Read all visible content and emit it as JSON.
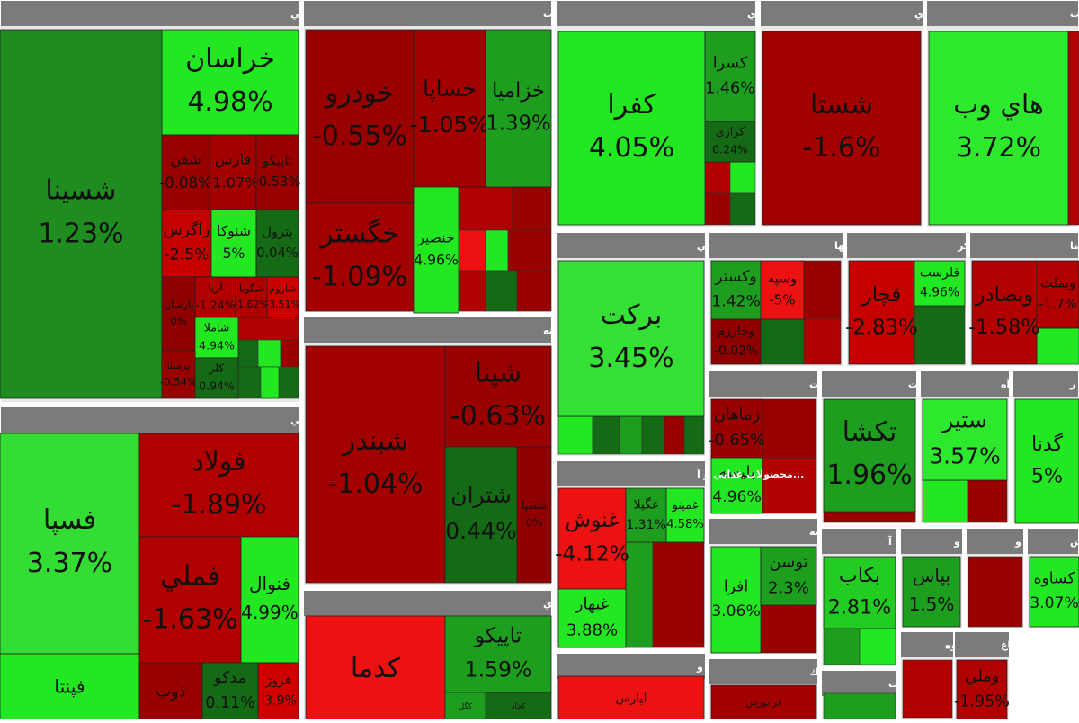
{
  "chart_data": {
    "type": "treemap",
    "groups": [
      {
        "name": "محصولات شيميايي",
        "categories": [
          "شسينا",
          "خراسان",
          "شفن",
          "فارس",
          "تاپيكو",
          "زاگرس",
          "شنوكا",
          "پترول",
          "پارسان",
          "آريا",
          "شگويا",
          "شاروم",
          "شاملا",
          "پرمينا",
          "كلر"
        ],
        "values": [
          1.23,
          4.98,
          -0.08,
          -1.07,
          -0.53,
          -2.5,
          5,
          0.04,
          0,
          -1.24,
          -1.62,
          -3.51,
          4.94,
          -0.54,
          0.94
        ],
        "value_labels": [
          "1.23%",
          "4.98%",
          "-0.08%",
          "-1.07%",
          "-0.53%",
          "-2.5%",
          "5%",
          "0.04%",
          "0%",
          "-1.24%",
          "-1.62%",
          "-3.51%",
          "4.94%",
          "-0.54%",
          "0.94%"
        ],
        "colors": [
          "#1e8c1e",
          "#22e822",
          "#990000",
          "#a30000",
          "#990000",
          "#c40000",
          "#22e822",
          "#156b15",
          "#8f0000",
          "#b00000",
          "#b00000",
          "#cc0000",
          "#22e822",
          "#990000",
          "#156b15"
        ]
      },
      {
        "name": "فلزات اساسي",
        "categories": [
          "فسپا",
          "فولاد",
          "فملي",
          "فنوال",
          "فپنتا",
          "ذوب",
          "مدكو",
          "فروژ"
        ],
        "values": [
          3.37,
          -1.89,
          -1.63,
          4.99,
          null,
          null,
          0.11,
          -3.9
        ],
        "value_labels": [
          "3.37%",
          "-1.89%",
          "-1.63%",
          "4.99%",
          null,
          null,
          "0.11%",
          "-3.9%"
        ],
        "colors": [
          "#33dd33",
          "#b00000",
          "#b00000",
          "#22e822",
          "#22e822",
          "#990000",
          "#156b15",
          "#d00000"
        ]
      },
      {
        "name": "خودرو و ساخت قطعات",
        "categories": [
          "خودرو",
          "خساپا",
          "خزاميا",
          "خگستر",
          "خنصير"
        ],
        "values": [
          -0.55,
          -1.05,
          1.39,
          -1.09,
          4.96
        ],
        "value_labels": [
          "-0.55%",
          "-1.05%",
          "1.39%",
          "-1.09%",
          "4.96%"
        ],
        "colors": [
          "#990000",
          "#a30000",
          "#1e9e1e",
          "#a30000",
          "#22e822"
        ]
      },
      {
        "name": "...فراورده هاي نفتي، كك و سوخت هسته",
        "categories": [
          "شبندر",
          "شپنا",
          "شتران",
          "شسپا"
        ],
        "values": [
          -1.04,
          -0.63,
          0.44,
          0
        ],
        "value_labels": [
          "-1.04%",
          "-0.63%",
          "0.44%",
          "0%"
        ],
        "colors": [
          "#a30000",
          "#990000",
          "#156b15",
          "#8f0000"
        ]
      },
      {
        "name": "استخراج كانه هاي فلزي",
        "categories": [
          "كدما",
          "تاپيكو",
          "كچاد",
          "كگل"
        ],
        "values": [
          null,
          1.59,
          null,
          null
        ],
        "value_labels": [
          null,
          "1.59%",
          null,
          null
        ],
        "colors": [
          "#ee1111",
          "#1e9e1e",
          "#156b15",
          "#1e9e1e"
        ]
      },
      {
        "name": "سایر محصولات كاني غيرفلزي",
        "categories": [
          "كفرا",
          "كسرا",
          "كرازي"
        ],
        "values": [
          4.05,
          1.46,
          0.24
        ],
        "value_labels": [
          "4.05%",
          "1.46%",
          "0.24%"
        ],
        "colors": [
          "#22e822",
          "#1e9e1e",
          "#156b15"
        ]
      },
      {
        "name": "... شركتهاي چند رشته اي",
        "categories": [
          "شستا"
        ],
        "values": [
          -1.6
        ],
        "value_labels": [
          "-1.6%"
        ],
        "colors": [
          "#a30000"
        ]
      },
      {
        "name": "اطلاعات و ارتباطات",
        "categories": [
          "هاي وب"
        ],
        "values": [
          3.72
        ],
        "value_labels": [
          "3.72%"
        ],
        "colors": [
          "#2ee82e"
        ]
      },
      {
        "name": "مواد و محصولات دارويي",
        "categories": [
          "بركت"
        ],
        "values": [
          3.45
        ],
        "value_labels": [
          "3.45%"
        ],
        "colors": [
          "#33e033"
        ]
      },
      {
        "name": "سرمايه گذاريها",
        "categories": [
          "وكستر",
          "وسپه",
          "وخارزم"
        ],
        "values": [
          1.42,
          -5,
          -0.02
        ],
        "value_labels": [
          "1.42%",
          "-5%",
          "-0.02%"
        ],
        "colors": [
          "#1e9e1e",
          "#ee1111",
          "#8f0000"
        ]
      },
      {
        "name": "قند و شكر",
        "categories": [
          "قچار",
          "قلرست"
        ],
        "values": [
          -2.83,
          4.96
        ],
        "value_labels": [
          "-2.83%",
          "4.96%"
        ],
        "colors": [
          "#c40000",
          "#22e822"
        ]
      },
      {
        "name": "...بانكها و موسسا",
        "categories": [
          "وبصادر",
          "وبملت"
        ],
        "values": [
          -1.58,
          -1.7
        ],
        "value_labels": [
          "-1.58%",
          "-1.7%"
        ],
        "colors": [
          "#b00000",
          "#b00000"
        ]
      },
      {
        "name": "...زراعت و خدمات",
        "categories": [
          "زماهان",
          "بليسه"
        ],
        "values": [
          -0.65,
          4.96
        ],
        "value_labels": [
          "-0.65%",
          "4.96%"
        ],
        "colors": [
          "#990000",
          "#22e822"
        ]
      },
      {
        "name": "... ماشين آلات",
        "categories": [
          "تكشا"
        ],
        "values": [
          1.96
        ],
        "value_labels": [
          "1.96%"
        ],
        "colors": [
          "#1e9e1e"
        ]
      },
      {
        "name": "...سيمان، آه",
        "categories": [
          "ستير"
        ],
        "values": [
          3.57
        ],
        "value_labels": [
          "3.57%"
        ],
        "colors": [
          "#2ee82e"
        ]
      },
      {
        "name": "...هتل و ر",
        "categories": [
          "گدنا"
        ],
        "values": [
          5
        ],
        "value_labels": [
          "5%"
        ],
        "colors": [
          "#22e822"
        ]
      },
      {
        "name": "...رايانه و فعاليته",
        "categories": [
          "افرا",
          "توسن"
        ],
        "values": [
          3.06,
          2.3
        ],
        "value_labels": [
          "3.06%",
          "2.3%"
        ],
        "colors": [
          "#22e822",
          "#1e9e1e"
        ]
      },
      {
        "name": "...ماشين آ",
        "categories": [
          "بكاب"
        ],
        "values": [
          2.81
        ],
        "value_labels": [
          "2.81%"
        ],
        "colors": [
          "#22cc22"
        ]
      },
      {
        "name": "...بيمه و",
        "categories": [
          "بپاس"
        ],
        "values": [
          1.5
        ],
        "value_labels": [
          "1.5%"
        ],
        "colors": [
          "#1e9e1e"
        ]
      },
      {
        "name": "...حمل و",
        "categories": [],
        "values": [],
        "value_labels": [],
        "colors": []
      },
      {
        "name": "...كاش",
        "categories": [
          "كساوه"
        ],
        "values": [
          3.07
        ],
        "value_labels": [
          "3.07%"
        ],
        "colors": [
          "#22e822"
        ]
      },
      {
        "name": "...محصولات غذايي و آ",
        "categories": [
          "غنوش",
          "غبهار",
          "غگيلا",
          "غمينو"
        ],
        "values": [
          -4.12,
          3.88,
          1.31,
          4.58
        ],
        "value_labels": [
          "-4.12%",
          "3.88%",
          "1.31%",
          "4.58%"
        ],
        "colors": [
          "#ee1111",
          "#22e822",
          "#1e9e1e",
          "#22e822"
        ]
      },
      {
        "name": "...ساخت دستگاهها و و",
        "categories": [
          "لپارس"
        ],
        "values": [
          null
        ],
        "value_labels": [
          null
        ],
        "colors": [
          "#ee1111"
        ]
      },
      {
        "name": "...فعاليتهاي كمك",
        "categories": [
          "فرابورس"
        ],
        "values": [
          null
        ],
        "value_labels": [
          null
        ],
        "colors": [
          "#a30000"
        ]
      },
      {
        "name": "...محصولات",
        "categories": [],
        "values": [],
        "value_labels": [],
        "colors": []
      },
      {
        "name": "... انبوه",
        "categories": [],
        "values": [],
        "value_labels": [],
        "colors": []
      },
      {
        "name": "...دباغ",
        "categories": [
          "وملي"
        ],
        "values": [
          -1.95
        ],
        "value_labels": [
          "-1.95%"
        ],
        "colors": [
          "#b00000"
        ]
      }
    ]
  }
}
